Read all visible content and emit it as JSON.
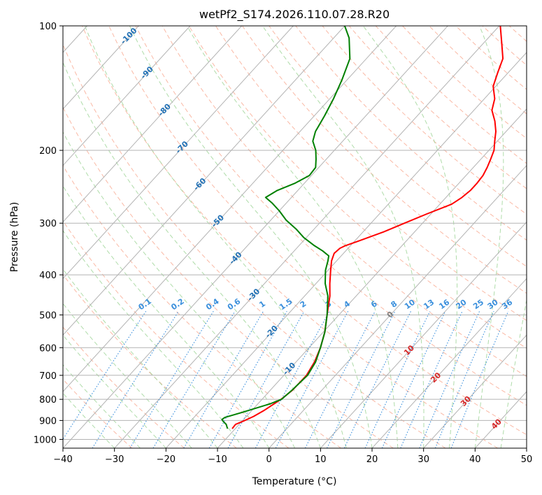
{
  "chart_data": {
    "type": "skew-t",
    "title": "wetPf2_S174.2026.110.07.28.R20",
    "xlabel": "Temperature (°C)",
    "ylabel": "Pressure (hPa)",
    "xlim": [
      -40,
      50
    ],
    "ylim": [
      1050,
      100
    ],
    "x_ticks": [
      -40,
      -30,
      -20,
      -10,
      0,
      10,
      20,
      30,
      40,
      50
    ],
    "x_tick_labels": [
      "−40",
      "−30",
      "−20",
      "−10",
      "0",
      "10",
      "20",
      "30",
      "40",
      "50"
    ],
    "y_ticks": [
      1000,
      900,
      800,
      700,
      600,
      500,
      400,
      300,
      200,
      100
    ],
    "y_tick_labels": [
      "1000",
      "900",
      "800",
      "700",
      "600",
      "500",
      "400",
      "300",
      "200",
      "100"
    ],
    "isotherm_labels": [
      "-100",
      "-90",
      "-80",
      "-70",
      "-60",
      "-50",
      "-40",
      "-30",
      "-20",
      "-10",
      "0",
      "10",
      "20",
      "30",
      "40"
    ],
    "mixing_ratio_labels": [
      "0.1",
      "0.2",
      "0.4",
      "0.6",
      "1",
      "1.5",
      "2",
      "3",
      "4",
      "6",
      "8",
      "10",
      "13",
      "16",
      "20",
      "25",
      "30",
      "36"
    ],
    "series": [
      {
        "name": "temperature",
        "color": "#ff0000",
        "points": [
          [
            -10.6,
            942
          ],
          [
            -10.7,
            920
          ],
          [
            -9.6,
            900
          ],
          [
            -8.6,
            880
          ],
          [
            -7.6,
            850
          ],
          [
            -6.3,
            800
          ],
          [
            -5.7,
            760
          ],
          [
            -5.6,
            700
          ],
          [
            -6.4,
            650
          ],
          [
            -7.8,
            600
          ],
          [
            -9.7,
            550
          ],
          [
            -12.3,
            500
          ],
          [
            -15.1,
            450
          ],
          [
            -17.3,
            420
          ],
          [
            -19.5,
            390
          ],
          [
            -21.0,
            370
          ],
          [
            -21.8,
            355
          ],
          [
            -21.6,
            345
          ],
          [
            -21.0,
            340
          ],
          [
            -19.0,
            330
          ],
          [
            -16.0,
            315
          ],
          [
            -13.5,
            300
          ],
          [
            -10.8,
            285
          ],
          [
            -8.8,
            275
          ],
          [
            -7.7,
            270
          ],
          [
            -6.9,
            260
          ],
          [
            -6.5,
            250
          ],
          [
            -6.5,
            240
          ],
          [
            -6.7,
            230
          ],
          [
            -7.3,
            220
          ],
          [
            -8.1,
            210
          ],
          [
            -9.0,
            200
          ],
          [
            -10.5,
            190
          ],
          [
            -12.0,
            180
          ],
          [
            -14.0,
            170
          ],
          [
            -16.5,
            160
          ],
          [
            -18.0,
            150
          ],
          [
            -20.5,
            140
          ],
          [
            -22.0,
            130
          ],
          [
            -23.5,
            120
          ],
          [
            -26.5,
            110
          ],
          [
            -29.8,
            100
          ]
        ]
      },
      {
        "name": "dewpoint",
        "color": "#008000",
        "points": [
          [
            -11.5,
            942
          ],
          [
            -12.5,
            920
          ],
          [
            -13.6,
            905
          ],
          [
            -14.2,
            895
          ],
          [
            -14.0,
            885
          ],
          [
            -11.5,
            860
          ],
          [
            -7.6,
            820
          ],
          [
            -6.2,
            800
          ],
          [
            -5.8,
            760
          ],
          [
            -5.4,
            700
          ],
          [
            -6.2,
            650
          ],
          [
            -7.8,
            600
          ],
          [
            -9.7,
            550
          ],
          [
            -12.3,
            500
          ],
          [
            -15.5,
            450
          ],
          [
            -18.2,
            420
          ],
          [
            -20.5,
            390
          ],
          [
            -21.7,
            370
          ],
          [
            -22.4,
            360
          ],
          [
            -24.5,
            350
          ],
          [
            -27.0,
            340
          ],
          [
            -30.5,
            325
          ],
          [
            -33.5,
            310
          ],
          [
            -37.0,
            295
          ],
          [
            -40.0,
            280
          ],
          [
            -42.8,
            268
          ],
          [
            -45.0,
            260
          ],
          [
            -44.0,
            250
          ],
          [
            -41.8,
            240
          ],
          [
            -40.4,
            230
          ],
          [
            -40.6,
            220
          ],
          [
            -42.0,
            210
          ],
          [
            -43.6,
            200
          ],
          [
            -45.8,
            190
          ],
          [
            -47.0,
            180
          ],
          [
            -48.0,
            165
          ],
          [
            -49.3,
            150
          ],
          [
            -51.0,
            135
          ],
          [
            -53.2,
            120
          ],
          [
            -57.0,
            107
          ],
          [
            -60.0,
            100
          ]
        ]
      }
    ]
  }
}
